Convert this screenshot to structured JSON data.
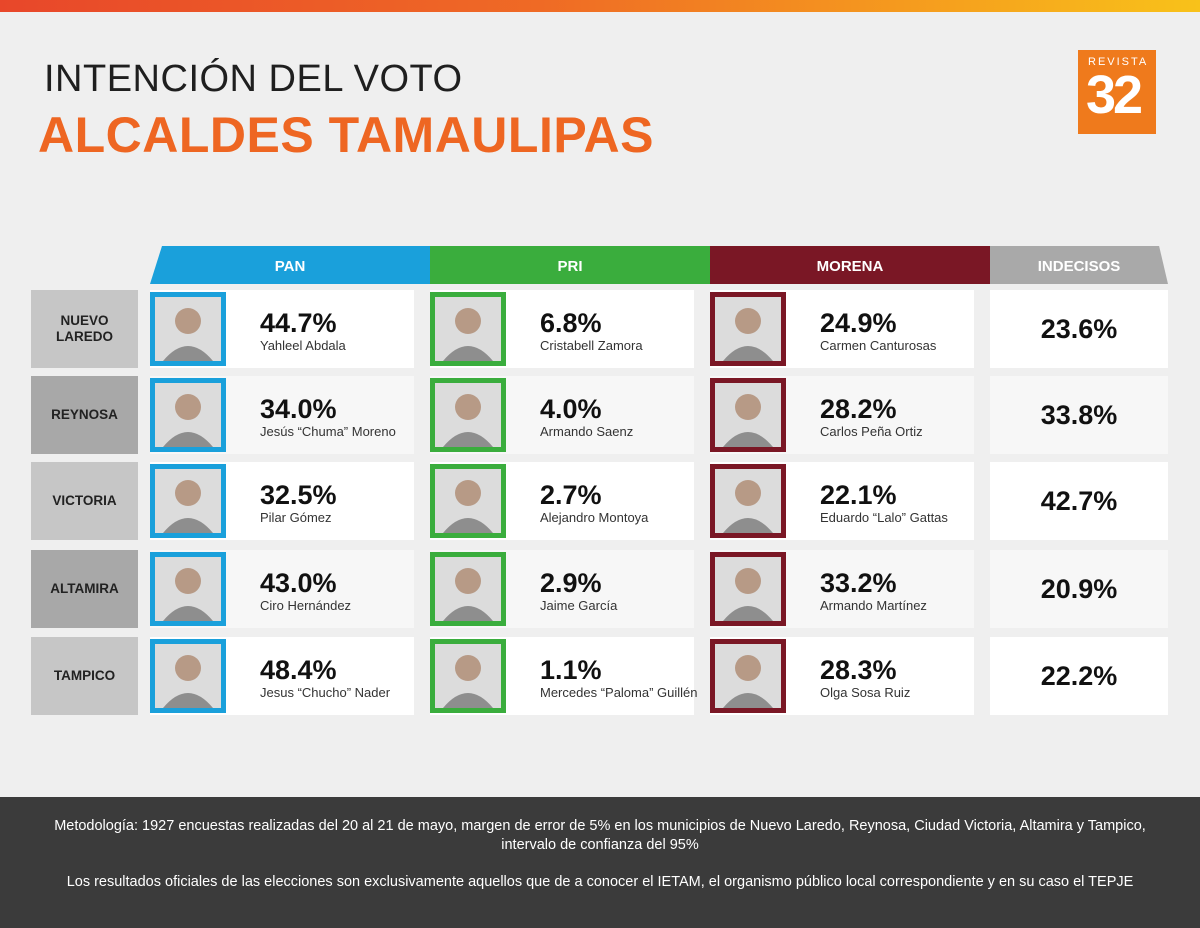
{
  "header": {
    "title_line1": "INTENCIÓN DEL VOTO",
    "title_line2": "ALCALDES TAMAULIPAS",
    "logo_small": "REVISTA",
    "logo_big": "32"
  },
  "colors": {
    "PAN": "#1aa0db",
    "PRI": "#3aad3d",
    "MORENA": "#7a1725",
    "INDECISOS": "#a9a9a9",
    "accent": "#ee6622"
  },
  "columns": [
    "PAN",
    "PRI",
    "MORENA",
    "INDECISOS"
  ],
  "rows": [
    {
      "city": "NUEVO LAREDO",
      "pan": {
        "pct": "44.7%",
        "name": "Yahleel Abdala"
      },
      "pri": {
        "pct": "6.8%",
        "name": "Cristabell Zamora"
      },
      "morena": {
        "pct": "24.9%",
        "name": "Carmen Canturosas"
      },
      "indecisos": "23.6%"
    },
    {
      "city": "REYNOSA",
      "pan": {
        "pct": "34.0%",
        "name": "Jesús “Chuma” Moreno"
      },
      "pri": {
        "pct": "4.0%",
        "name": "Armando Saenz"
      },
      "morena": {
        "pct": "28.2%",
        "name": "Carlos Peña Ortiz"
      },
      "indecisos": "33.8%"
    },
    {
      "city": "VICTORIA",
      "pan": {
        "pct": "32.5%",
        "name": "Pilar Gómez"
      },
      "pri": {
        "pct": "2.7%",
        "name": "Alejandro Montoya"
      },
      "morena": {
        "pct": "22.1%",
        "name": "Eduardo “Lalo” Gattas"
      },
      "indecisos": "42.7%"
    },
    {
      "city": "ALTAMIRA",
      "pan": {
        "pct": "43.0%",
        "name": "Ciro Hernández"
      },
      "pri": {
        "pct": "2.9%",
        "name": "Jaime García"
      },
      "morena": {
        "pct": "33.2%",
        "name": "Armando Martínez"
      },
      "indecisos": "20.9%"
    },
    {
      "city": "TAMPICO",
      "pan": {
        "pct": "48.4%",
        "name": "Jesus “Chucho” Nader"
      },
      "pri": {
        "pct": "1.1%",
        "name": "Mercedes “Paloma” Guillén"
      },
      "morena": {
        "pct": "28.3%",
        "name": "Olga Sosa Ruiz"
      },
      "indecisos": "22.2%"
    }
  ],
  "chart_data": {
    "type": "table",
    "columns": [
      "PAN",
      "PRI",
      "MORENA",
      "INDECISOS"
    ],
    "categories": [
      "NUEVO LAREDO",
      "REYNOSA",
      "VICTORIA",
      "ALTAMIRA",
      "TAMPICO"
    ],
    "series": [
      {
        "name": "PAN",
        "values": [
          44.7,
          34.0,
          32.5,
          43.0,
          48.4
        ]
      },
      {
        "name": "PRI",
        "values": [
          6.8,
          4.0,
          2.7,
          2.9,
          1.1
        ]
      },
      {
        "name": "MORENA",
        "values": [
          24.9,
          28.2,
          22.1,
          33.2,
          28.3
        ]
      },
      {
        "name": "INDECISOS",
        "values": [
          23.6,
          33.8,
          42.7,
          20.9,
          22.2
        ]
      }
    ],
    "title": "INTENCIÓN DEL VOTO ALCALDES TAMAULIPAS"
  },
  "footer": {
    "methodology": "Metodología: 1927 encuestas realizadas del 20 al 21 de mayo, margen de error de 5% en los municipios de Nuevo Laredo, Reynosa, Ciudad Victoria, Altamira y Tampico, intervalo de confianza del 95%",
    "disclaimer": "Los resultados oficiales de las elecciones son exclusivamente aquellos que de a conocer el IETAM, el organismo público local correspondiente y en su caso el TEPJE"
  }
}
